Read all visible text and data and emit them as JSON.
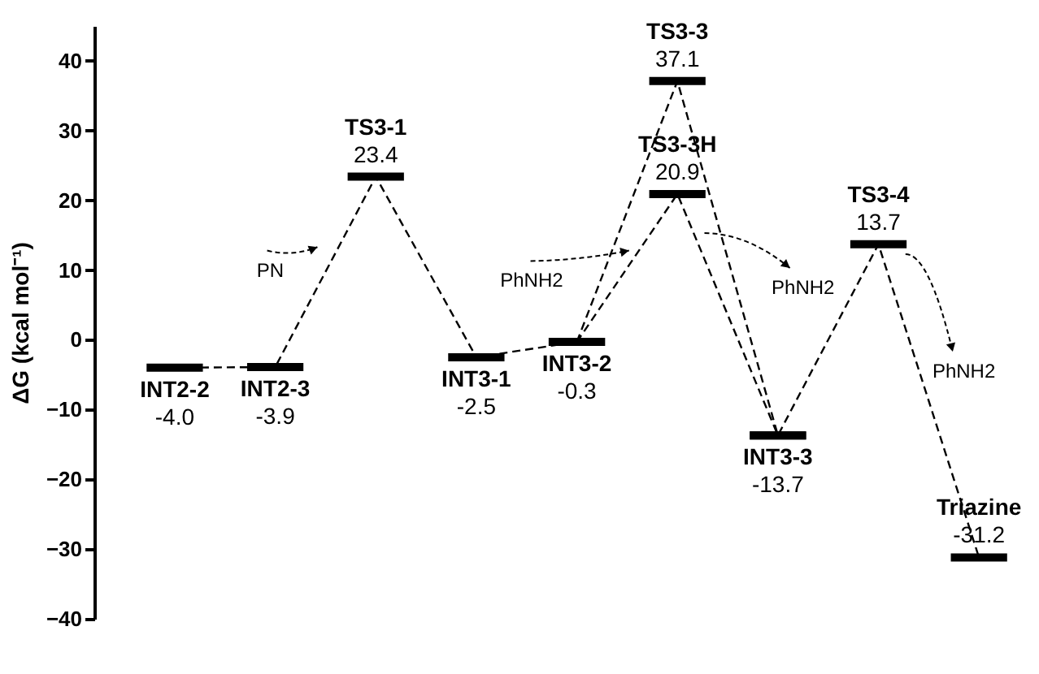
{
  "chart_data": {
    "type": "line",
    "ylabel": "ΔG (kcal mol⁻¹)",
    "categories": [
      null,
      null,
      null,
      null,
      null,
      null,
      null,
      null,
      null
    ],
    "series": [
      {
        "color": "#000000",
        "values": [
          -4.0,
          -3.9,
          23.4,
          -2.5,
          -0.3,
          20.9,
          -13.7,
          13.7,
          -31.2
        ],
        "value_labels": [
          "-4.0",
          "-3.9",
          "23.4",
          "-2.5",
          "-0.3",
          "20.9",
          "-13.7",
          "13.7",
          "-31.2"
        ]
      },
      {
        "color": "#000000",
        "values": [
          null,
          null,
          null,
          null,
          -0.3,
          37.1,
          -13.7,
          null,
          null
        ],
        "value_labels": [
          null,
          null,
          null,
          null,
          null,
          "37.1",
          null,
          null,
          null
        ]
      }
    ],
    "line_style": "dashed",
    "ylim": [
      -40,
      45
    ],
    "yticks": [
      -40,
      -30,
      -20,
      -10,
      0,
      10,
      20,
      30,
      40
    ],
    "grid": false,
    "annotations": [
      {
        "text": "INT2-2",
        "y": -4.0
      },
      {
        "text": "INT2-3",
        "y": -3.9
      },
      {
        "text": "TS3-1",
        "y": 23.4
      },
      {
        "text": "INT3-1",
        "y": -2.5
      },
      {
        "text": "INT3-2",
        "y": -0.3
      },
      {
        "text": "TS3-3H",
        "y": 20.9
      },
      {
        "text": "TS3-3",
        "y": 37.1
      },
      {
        "text": "INT3-3",
        "y": -13.7
      },
      {
        "text": "TS3-4",
        "y": 13.7
      },
      {
        "text": "Triazine",
        "y": -31.2
      },
      "PN",
      "PhNH2",
      "PhNH2",
      "PhNH2"
    ]
  }
}
